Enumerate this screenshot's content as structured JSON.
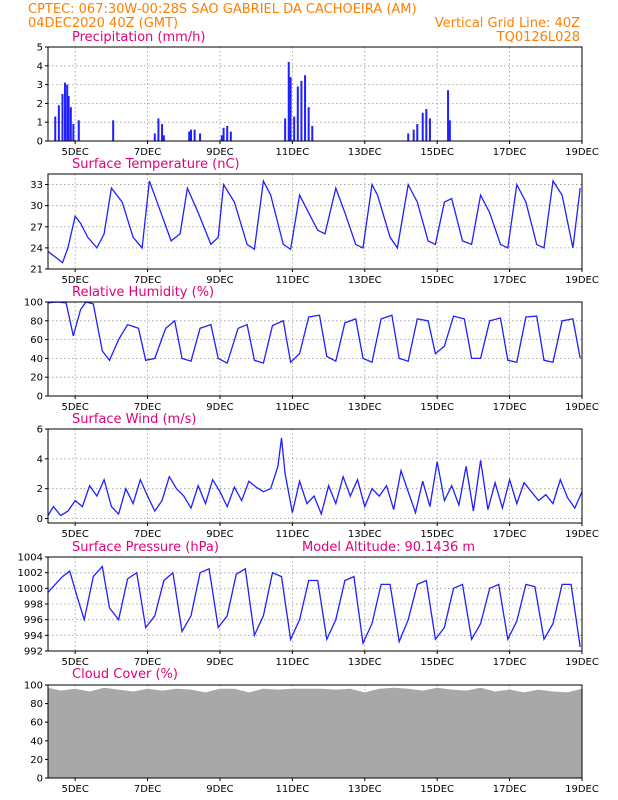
{
  "header": {
    "line1_left": "CPTEC:   067:30W-00:28S  SAO GABRIEL DA CACHOEIRA (AM)",
    "line2_left": "04DEC2020 40Z (GMT)",
    "line2_right": "Vertical Grid Line: 40Z",
    "line3_right": "TQ0126L028"
  },
  "colors": {
    "header": "#ff7f00",
    "title": "#e0007a",
    "line": "#2020ff",
    "cloud": "#a8a8a8"
  },
  "x_axis": {
    "ticks": [
      "5DEC",
      "7DEC",
      "9DEC",
      "11DEC",
      "13DEC",
      "15DEC",
      "17DEC",
      "19DEC"
    ],
    "tick_days": [
      5,
      7,
      9,
      11,
      13,
      15,
      17,
      19
    ],
    "range_days": [
      4.25,
      19.0
    ]
  },
  "chart_data": [
    {
      "type": "bar",
      "title": "Precipitation (mm/h)",
      "ylim": [
        0,
        5
      ],
      "yticks": [
        0,
        1,
        2,
        3,
        4,
        5
      ],
      "x": [
        4.45,
        4.55,
        4.65,
        4.72,
        4.78,
        4.82,
        4.88,
        4.95,
        5.1,
        6.05,
        7.2,
        7.3,
        7.4,
        7.45,
        8.15,
        8.2,
        8.3,
        8.45,
        9.05,
        9.1,
        9.2,
        9.3,
        10.8,
        10.9,
        10.95,
        11.05,
        11.15,
        11.25,
        11.35,
        11.45,
        11.55,
        14.2,
        14.35,
        14.45,
        14.6,
        14.7,
        14.8,
        15.3,
        15.35
      ],
      "values": [
        1.3,
        1.9,
        2.5,
        3.1,
        3.0,
        2.4,
        1.8,
        0.9,
        1.1,
        1.1,
        0.4,
        1.2,
        0.9,
        0.3,
        0.5,
        0.6,
        0.6,
        0.4,
        0.3,
        0.7,
        0.8,
        0.5,
        1.2,
        4.2,
        3.4,
        1.3,
        2.9,
        3.2,
        3.5,
        1.8,
        0.8,
        0.4,
        0.6,
        0.9,
        1.5,
        1.7,
        1.2,
        2.7,
        1.1
      ]
    },
    {
      "type": "line",
      "title": "Surface Temperature (nC)",
      "ylim": [
        21,
        34.5
      ],
      "yticks": [
        21,
        24,
        27,
        30,
        33
      ],
      "x": [
        4.25,
        4.5,
        4.65,
        4.8,
        5.0,
        5.15,
        5.35,
        5.6,
        5.8,
        6.0,
        6.3,
        6.6,
        6.85,
        7.05,
        7.3,
        7.65,
        7.9,
        8.1,
        8.4,
        8.75,
        8.95,
        9.1,
        9.4,
        9.75,
        9.95,
        10.2,
        10.4,
        10.75,
        10.95,
        11.2,
        11.35,
        11.7,
        11.9,
        12.2,
        12.45,
        12.75,
        12.95,
        13.2,
        13.35,
        13.7,
        13.9,
        14.2,
        14.45,
        14.75,
        14.95,
        15.2,
        15.4,
        15.7,
        15.95,
        16.2,
        16.45,
        16.75,
        16.95,
        17.2,
        17.45,
        17.75,
        17.95,
        18.2,
        18.45,
        18.75,
        18.95
      ],
      "values": [
        23.5,
        22.5,
        21.9,
        24.0,
        28.5,
        27.5,
        25.5,
        24.0,
        26.0,
        32.5,
        30.5,
        25.5,
        24.0,
        33.5,
        30.0,
        25.0,
        26.0,
        32.5,
        29.0,
        24.5,
        25.5,
        33.0,
        30.5,
        24.5,
        23.8,
        33.5,
        31.5,
        24.5,
        23.8,
        31.5,
        30.0,
        26.5,
        26.0,
        32.5,
        29.0,
        24.5,
        24.0,
        33.0,
        31.5,
        25.5,
        24.0,
        33.0,
        30.5,
        25.0,
        24.5,
        30.5,
        31.0,
        25.0,
        24.5,
        31.5,
        29.0,
        24.5,
        24.0,
        33.0,
        30.5,
        24.5,
        24.0,
        33.5,
        31.5,
        24.0,
        32.5
      ]
    },
    {
      "type": "line",
      "title": "Relative Humidity (%)",
      "ylim": [
        0,
        100
      ],
      "yticks": [
        0,
        20,
        40,
        60,
        80,
        100
      ],
      "x": [
        4.25,
        4.5,
        4.75,
        4.95,
        5.15,
        5.3,
        5.5,
        5.75,
        5.95,
        6.2,
        6.45,
        6.75,
        6.95,
        7.2,
        7.5,
        7.75,
        7.95,
        8.2,
        8.45,
        8.75,
        8.95,
        9.2,
        9.5,
        9.75,
        9.95,
        10.2,
        10.45,
        10.75,
        10.95,
        11.2,
        11.45,
        11.75,
        11.95,
        12.2,
        12.45,
        12.75,
        12.95,
        13.2,
        13.45,
        13.75,
        13.95,
        14.2,
        14.45,
        14.75,
        14.95,
        15.2,
        15.45,
        15.75,
        15.95,
        16.2,
        16.45,
        16.75,
        16.95,
        17.2,
        17.45,
        17.75,
        17.95,
        18.2,
        18.45,
        18.75,
        18.95
      ],
      "values": [
        99,
        100,
        99,
        64,
        92,
        100,
        98,
        48,
        38,
        60,
        76,
        72,
        38,
        40,
        72,
        80,
        40,
        37,
        72,
        76,
        40,
        35,
        72,
        76,
        38,
        35,
        75,
        80,
        36,
        45,
        84,
        86,
        42,
        37,
        78,
        82,
        40,
        36,
        82,
        86,
        40,
        37,
        82,
        80,
        45,
        53,
        85,
        82,
        40,
        40,
        80,
        83,
        38,
        36,
        84,
        85,
        38,
        36,
        80,
        82,
        40
      ]
    },
    {
      "type": "line",
      "title": "Surface Wind (m/s)",
      "ylim": [
        -0.3,
        6
      ],
      "yticks": [
        0,
        2,
        4,
        6
      ],
      "x": [
        4.25,
        4.4,
        4.6,
        4.8,
        5.0,
        5.2,
        5.4,
        5.6,
        5.8,
        6.0,
        6.2,
        6.4,
        6.6,
        6.8,
        7.0,
        7.2,
        7.4,
        7.6,
        7.8,
        8.0,
        8.2,
        8.4,
        8.6,
        8.8,
        9.0,
        9.2,
        9.4,
        9.6,
        9.8,
        10.0,
        10.2,
        10.4,
        10.6,
        10.7,
        10.8,
        11.0,
        11.2,
        11.4,
        11.6,
        11.8,
        12.0,
        12.2,
        12.4,
        12.6,
        12.8,
        13.0,
        13.2,
        13.4,
        13.6,
        13.8,
        14.0,
        14.2,
        14.4,
        14.6,
        14.8,
        15.0,
        15.2,
        15.4,
        15.6,
        15.8,
        16.0,
        16.2,
        16.4,
        16.6,
        16.8,
        17.0,
        17.2,
        17.4,
        17.6,
        17.8,
        18.0,
        18.2,
        18.4,
        18.6,
        18.8,
        19.0
      ],
      "values": [
        0.2,
        0.8,
        0.2,
        0.5,
        1.2,
        0.8,
        2.2,
        1.5,
        2.6,
        0.8,
        0.3,
        2.0,
        1.0,
        2.6,
        1.5,
        0.5,
        1.2,
        2.8,
        2.0,
        1.5,
        0.7,
        2.2,
        1.0,
        2.6,
        1.8,
        0.8,
        2.1,
        1.2,
        2.5,
        2.1,
        1.8,
        2.0,
        3.5,
        5.4,
        3.0,
        0.4,
        2.5,
        1.0,
        1.5,
        0.3,
        2.2,
        1.0,
        2.8,
        1.5,
        2.6,
        0.8,
        2.0,
        1.5,
        2.2,
        0.6,
        3.2,
        1.8,
        0.4,
        2.5,
        0.8,
        3.8,
        1.2,
        2.2,
        0.9,
        3.5,
        0.5,
        3.9,
        0.6,
        2.4,
        0.7,
        2.6,
        1.0,
        2.4,
        1.8,
        1.2,
        1.6,
        1.0,
        2.6,
        1.4,
        0.7,
        1.8
      ]
    },
    {
      "type": "line",
      "title": "Surface Pressure (hPa)",
      "subtitle": "Model Altitude: 90.1436 m",
      "ylim": [
        992,
        1004
      ],
      "yticks": [
        992,
        994,
        996,
        998,
        1000,
        1002,
        1004
      ],
      "x": [
        4.25,
        4.45,
        4.65,
        4.85,
        5.05,
        5.25,
        5.5,
        5.75,
        5.95,
        6.2,
        6.45,
        6.7,
        6.95,
        7.2,
        7.45,
        7.7,
        7.95,
        8.2,
        8.45,
        8.7,
        8.95,
        9.2,
        9.45,
        9.7,
        9.95,
        10.2,
        10.45,
        10.7,
        10.95,
        11.2,
        11.45,
        11.7,
        11.95,
        12.2,
        12.45,
        12.7,
        12.95,
        13.2,
        13.45,
        13.7,
        13.95,
        14.2,
        14.45,
        14.7,
        14.95,
        15.2,
        15.45,
        15.7,
        15.95,
        16.2,
        16.45,
        16.7,
        16.95,
        17.2,
        17.45,
        17.7,
        17.95,
        18.2,
        18.45,
        18.7,
        18.95
      ],
      "values": [
        999.5,
        1000.5,
        1001.5,
        1002.2,
        999.0,
        996.0,
        1001.5,
        1002.8,
        997.5,
        996.0,
        1001.2,
        1002.0,
        995.0,
        996.5,
        1001.0,
        1002.0,
        994.5,
        996.5,
        1002.0,
        1002.5,
        995.0,
        996.5,
        1001.8,
        1002.5,
        994.0,
        996.5,
        1002.0,
        1001.5,
        993.5,
        996.0,
        1001.0,
        1001.0,
        993.5,
        996.0,
        1001.0,
        1001.5,
        993.0,
        995.5,
        1000.5,
        1000.5,
        993.2,
        996.0,
        1000.5,
        1001.0,
        993.5,
        995.0,
        1000.0,
        1000.5,
        993.5,
        995.5,
        1000.0,
        1000.5,
        993.5,
        995.8,
        1000.5,
        1000.2,
        993.5,
        995.5,
        1000.5,
        1000.5,
        992.5
      ]
    },
    {
      "type": "area",
      "title": "Cloud Cover (%)",
      "ylim": [
        0,
        100
      ],
      "yticks": [
        0,
        20,
        40,
        60,
        80,
        100
      ],
      "x": [
        4.25,
        4.6,
        5.0,
        5.4,
        5.8,
        6.2,
        6.6,
        7.0,
        7.4,
        7.8,
        8.2,
        8.6,
        9.0,
        9.4,
        9.8,
        10.2,
        10.6,
        11.0,
        11.4,
        11.8,
        12.2,
        12.6,
        13.0,
        13.4,
        13.8,
        14.2,
        14.6,
        15.0,
        15.4,
        15.8,
        16.2,
        16.6,
        17.0,
        17.4,
        17.8,
        18.2,
        18.6,
        19.0
      ],
      "values": [
        97,
        94,
        96,
        93,
        97,
        95,
        93,
        96,
        94,
        96,
        95,
        92,
        96,
        96,
        92,
        96,
        95,
        96,
        96,
        96,
        95,
        96,
        92,
        96,
        97,
        96,
        94,
        97,
        95,
        94,
        97,
        93,
        95,
        92,
        95,
        93,
        92,
        96
      ]
    }
  ]
}
